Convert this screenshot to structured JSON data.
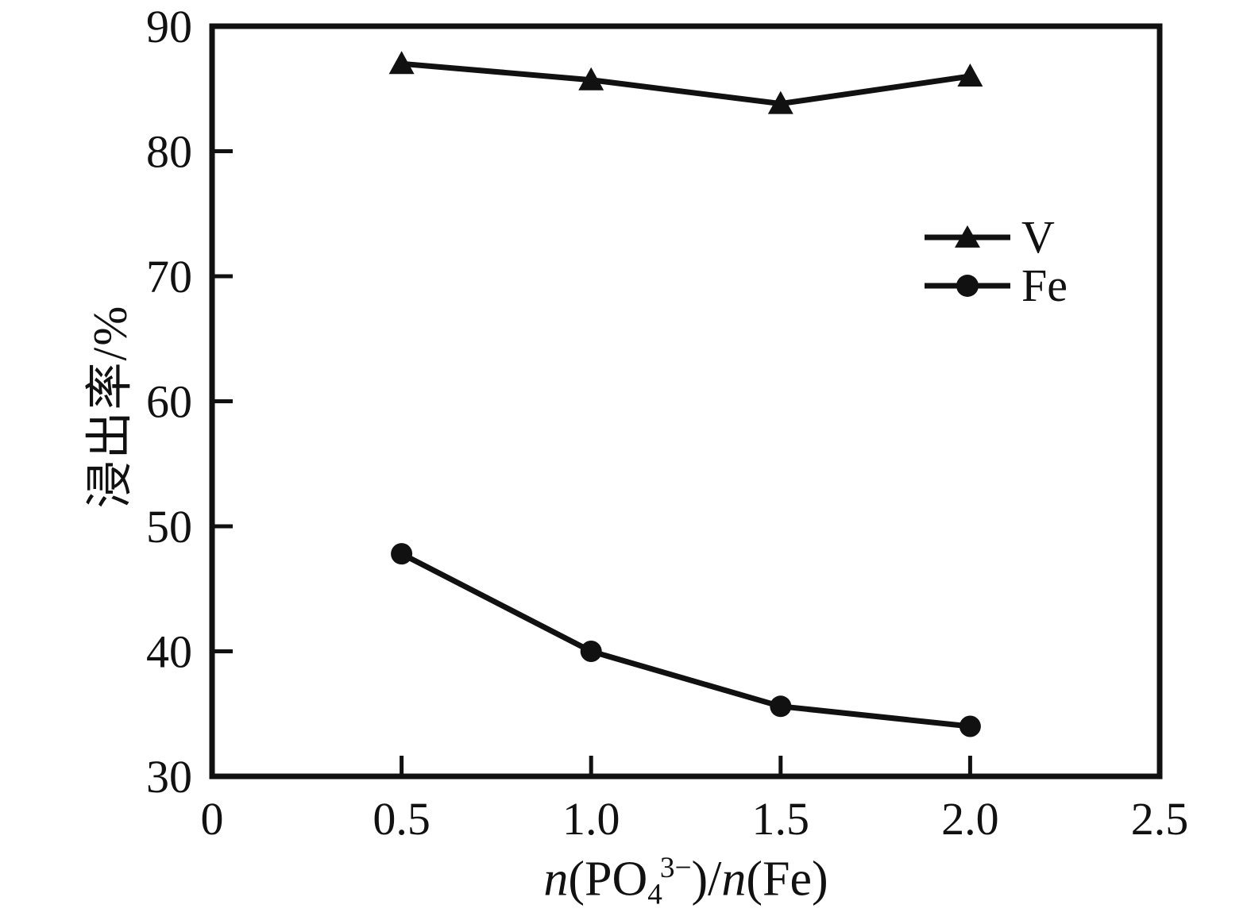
{
  "figure": {
    "background": "#ffffff",
    "ink_color": "#111111"
  },
  "chart_data": {
    "type": "line",
    "x": [
      0.5,
      1.0,
      1.5,
      2.0
    ],
    "series": [
      {
        "name": "V",
        "marker": "triangle",
        "color": "#111111",
        "values": [
          87.0,
          85.7,
          83.8,
          86.0
        ]
      },
      {
        "name": "Fe",
        "marker": "circle",
        "color": "#111111",
        "values": [
          47.8,
          40.0,
          35.6,
          34.0
        ]
      }
    ],
    "title": "",
    "xlabel": "n(PO4^3-)/n(Fe)",
    "ylabel": "浸出率/%",
    "xlim": [
      0,
      2.5
    ],
    "ylim": [
      30,
      90
    ],
    "xticks": {
      "values": [
        0,
        0.5,
        1.0,
        1.5,
        2.0,
        2.5
      ],
      "labels": [
        "0",
        "0.5",
        "1.0",
        "1.5",
        "2.0",
        "2.5"
      ]
    },
    "yticks": {
      "values": [
        30,
        40,
        50,
        60,
        70,
        80,
        90
      ],
      "labels": [
        "30",
        "40",
        "50",
        "60",
        "70",
        "80",
        "90"
      ]
    },
    "grid": false,
    "legend_position": "upper-right-inside"
  },
  "x_axis_title_parts": {
    "n1": "n",
    "open1": "(PO",
    "sub": "4",
    "sup": "3−",
    "mid": ")/",
    "n2": "n",
    "rest": "(Fe)"
  }
}
